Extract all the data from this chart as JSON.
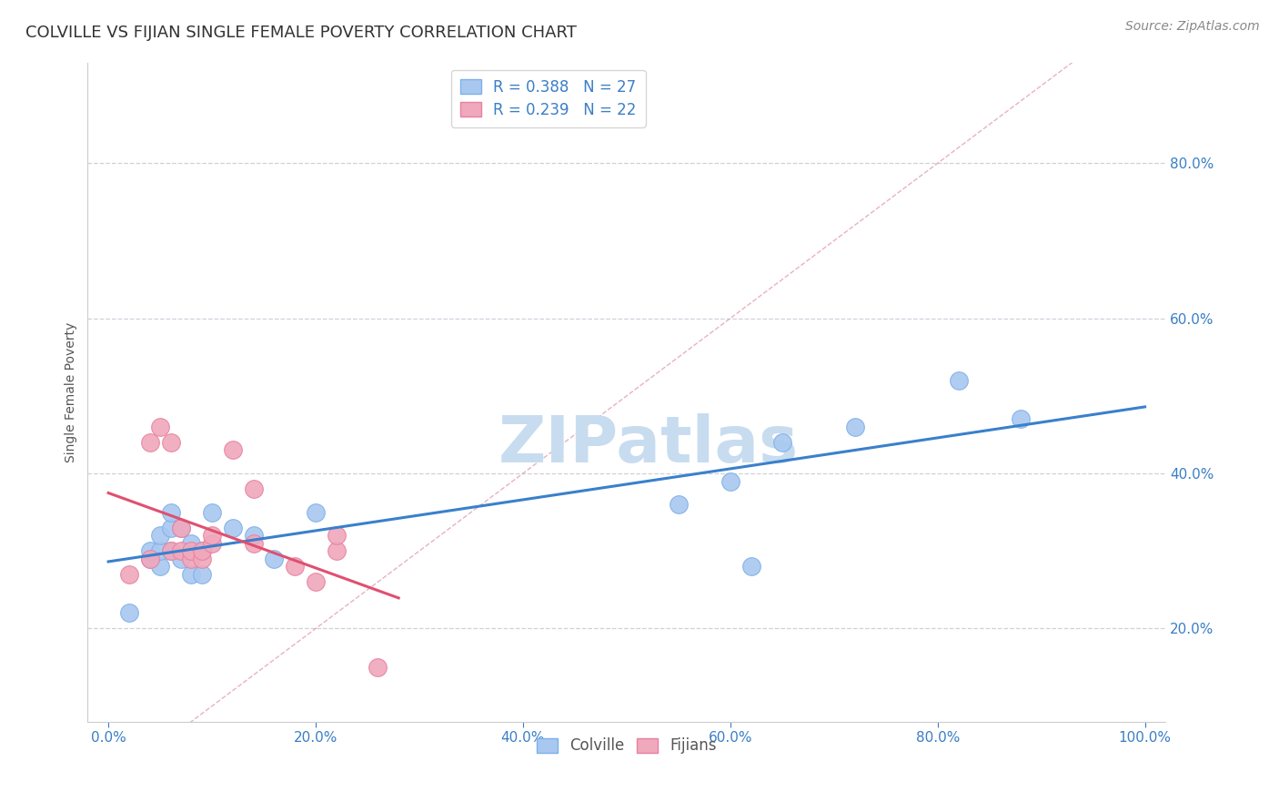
{
  "title": "COLVILLE VS FIJIAN SINGLE FEMALE POVERTY CORRELATION CHART",
  "ylabel": "Single Female Poverty",
  "source": "Source: ZipAtlas.com",
  "xlim": [
    -0.02,
    1.02
  ],
  "ylim": [
    0.08,
    0.93
  ],
  "x_ticks": [
    0.0,
    0.2,
    0.4,
    0.6,
    0.8,
    1.0
  ],
  "y_ticks": [
    0.2,
    0.4,
    0.6,
    0.8
  ],
  "colville_R": 0.388,
  "colville_N": 27,
  "fijian_R": 0.239,
  "fijian_N": 22,
  "colville_color": "#A8C8F0",
  "fijian_color": "#F0A8BC",
  "colville_edge_color": "#7EB0E8",
  "fijian_edge_color": "#E880A0",
  "colville_line_color": "#3A80CC",
  "fijian_line_color": "#E05070",
  "diag_line_color": "#E090A8",
  "colville_x": [
    0.02,
    0.04,
    0.04,
    0.05,
    0.05,
    0.05,
    0.06,
    0.06,
    0.06,
    0.07,
    0.07,
    0.08,
    0.08,
    0.09,
    0.09,
    0.1,
    0.12,
    0.14,
    0.16,
    0.2,
    0.55,
    0.6,
    0.62,
    0.65,
    0.72,
    0.82,
    0.88
  ],
  "colville_y": [
    0.22,
    0.29,
    0.3,
    0.28,
    0.3,
    0.32,
    0.3,
    0.33,
    0.35,
    0.29,
    0.33,
    0.27,
    0.31,
    0.27,
    0.3,
    0.35,
    0.33,
    0.32,
    0.29,
    0.35,
    0.36,
    0.39,
    0.28,
    0.44,
    0.46,
    0.52,
    0.47
  ],
  "fijian_x": [
    0.02,
    0.04,
    0.04,
    0.05,
    0.06,
    0.06,
    0.07,
    0.07,
    0.08,
    0.08,
    0.09,
    0.09,
    0.1,
    0.1,
    0.12,
    0.14,
    0.14,
    0.18,
    0.2,
    0.22,
    0.22,
    0.26
  ],
  "fijian_y": [
    0.27,
    0.44,
    0.29,
    0.46,
    0.44,
    0.3,
    0.3,
    0.33,
    0.29,
    0.3,
    0.29,
    0.3,
    0.31,
    0.32,
    0.43,
    0.38,
    0.31,
    0.28,
    0.26,
    0.3,
    0.32,
    0.15
  ],
  "title_fontsize": 13,
  "axis_label_fontsize": 10,
  "tick_fontsize": 11,
  "legend_fontsize": 12,
  "background_color": "#FFFFFF",
  "grid_color": "#D0D0DC",
  "watermark_text": "ZIPatlas",
  "watermark_color": "#C8DCF0",
  "watermark_fontsize": 52
}
